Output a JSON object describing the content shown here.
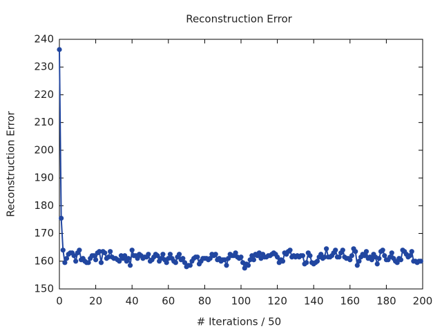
{
  "chart_data": {
    "type": "line",
    "title": "Reconstruction Error",
    "xlabel": "# Iterations / 50",
    "ylabel": "Reconstruction Error",
    "x": [
      0,
      1,
      2,
      3,
      4,
      5,
      6,
      7,
      8,
      9,
      10,
      11,
      12,
      13,
      14,
      15,
      16,
      17,
      18,
      19,
      20,
      21,
      22,
      23,
      24,
      25,
      26,
      27,
      28,
      29,
      30,
      31,
      32,
      33,
      34,
      35,
      36,
      37,
      38,
      39,
      40,
      41,
      42,
      43,
      44,
      45,
      46,
      47,
      48,
      49,
      50,
      51,
      52,
      53,
      54,
      55,
      56,
      57,
      58,
      59,
      60,
      61,
      62,
      63,
      64,
      65,
      66,
      67,
      68,
      69,
      70,
      71,
      72,
      73,
      74,
      75,
      76,
      77,
      78,
      79,
      80,
      81,
      82,
      83,
      84,
      85,
      86,
      87,
      88,
      89,
      90,
      91,
      92,
      93,
      94,
      95,
      96,
      97,
      98,
      99,
      100,
      101,
      102,
      103,
      104,
      105,
      106,
      107,
      108,
      109,
      110,
      111,
      112,
      113,
      114,
      115,
      116,
      117,
      118,
      119,
      120,
      121,
      122,
      123,
      124,
      125,
      126,
      127,
      128,
      129,
      130,
      131,
      132,
      133,
      134,
      135,
      136,
      137,
      138,
      139,
      140,
      141,
      142,
      143,
      144,
      145,
      146,
      147,
      148,
      149,
      150,
      151,
      152,
      153,
      154,
      155,
      156,
      157,
      158,
      159,
      160,
      161,
      162,
      163,
      164,
      165,
      166,
      167,
      168,
      169,
      170,
      171,
      172,
      173,
      174,
      175,
      176,
      177,
      178,
      179,
      180,
      181,
      182,
      183,
      184,
      185,
      186,
      187,
      188,
      189,
      190,
      191,
      192,
      193,
      194,
      195,
      196,
      197,
      198,
      199
    ],
    "series": [
      {
        "name": "Reconstruction Error",
        "color": "#2146a0",
        "values": [
          236.3,
          175.5,
          164,
          159.5,
          161,
          162.5,
          163,
          163,
          162,
          160,
          163,
          164,
          160.5,
          161,
          160,
          159.5,
          159.5,
          161,
          162,
          162,
          160.5,
          163,
          163.5,
          159.5,
          163.5,
          163,
          161,
          161.5,
          163.5,
          161.5,
          161,
          161,
          160.5,
          160,
          162,
          161,
          162,
          160,
          161,
          158.5,
          164,
          162,
          162,
          161,
          162.5,
          162,
          161,
          161.5,
          161.5,
          162.5,
          160,
          160.5,
          161.5,
          162.5,
          162,
          160,
          161,
          162.5,
          160.5,
          159.5,
          161,
          162.5,
          161,
          160,
          159.5,
          161.5,
          162.5,
          160.5,
          161,
          159.5,
          158,
          158.5,
          158.5,
          160,
          161,
          161.5,
          161.5,
          159,
          160,
          161,
          161,
          161,
          160.5,
          161,
          162.5,
          162,
          162.5,
          160.5,
          161,
          160,
          160.5,
          160.5,
          158.5,
          161,
          162.5,
          162,
          162,
          163,
          161.5,
          161,
          161.5,
          159.5,
          157.5,
          159,
          158.5,
          160.5,
          162,
          160.5,
          162.5,
          162,
          163,
          161,
          162.5,
          161.5,
          161.5,
          162,
          162,
          162.5,
          163,
          162.5,
          161.5,
          159.5,
          160.5,
          160,
          163,
          162.5,
          163.5,
          164,
          161.5,
          162,
          161.5,
          162,
          161.5,
          162,
          162,
          159,
          159.5,
          163,
          162,
          159.5,
          159,
          159.5,
          160,
          161.5,
          162.5,
          161,
          161.5,
          164.5,
          161.5,
          161.5,
          162,
          163,
          164,
          161.5,
          161.5,
          163,
          164,
          161.5,
          161,
          161,
          160.5,
          162,
          164.5,
          163.5,
          158.5,
          160,
          161.5,
          162.5,
          162,
          163.5,
          161,
          161.5,
          160.5,
          162.5,
          161.5,
          159,
          161,
          163.5,
          164,
          162,
          160.5,
          160.5,
          161.5,
          163,
          161,
          160,
          159.5,
          161,
          160.5,
          164,
          163.5,
          162.5,
          161.5,
          162,
          163.5,
          160,
          160,
          159.5,
          160,
          160
        ]
      }
    ],
    "xlim": [
      0,
      200
    ],
    "xticks": [
      0,
      20,
      40,
      60,
      80,
      100,
      120,
      140,
      160,
      180,
      200
    ],
    "ylim": [
      150,
      240
    ],
    "yticks": [
      150,
      160,
      170,
      180,
      190,
      200,
      210,
      220,
      230,
      240
    ]
  }
}
